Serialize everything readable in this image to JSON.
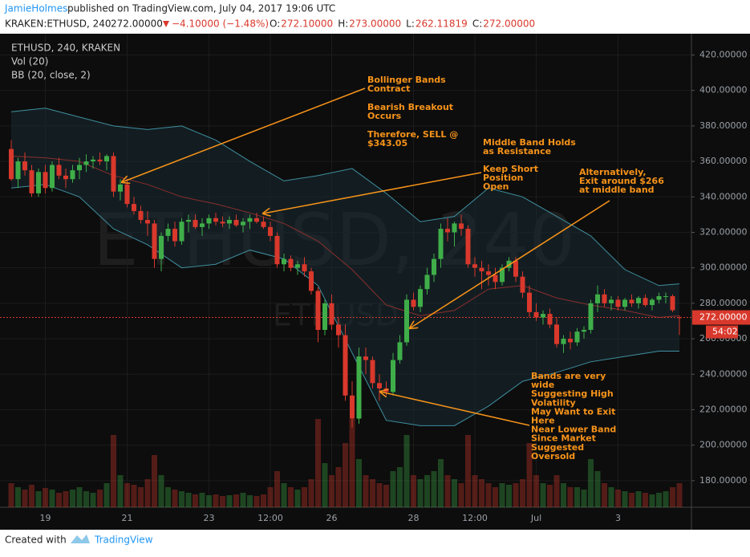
{
  "header": {
    "author": "JamieHolmes",
    "published": "published on TradingView.com, July 04, 2017 19:06 UTC",
    "symbol": "KRAKEN:ETHUSD, 240",
    "price": "272.00000",
    "change": "−4.10000 (−1.48%)",
    "ohlc": [
      {
        "k": "O:",
        "v": "272.10000"
      },
      {
        "k": "H:",
        "v": "273.00000"
      },
      {
        "k": "L:",
        "v": "262.11819"
      },
      {
        "k": "C:",
        "v": "272.00000"
      }
    ]
  },
  "chart_data": {
    "type": "candlestick",
    "legend": [
      "ETHUSD, 240, KRAKEN",
      "Vol (20)",
      "BB (20, close, 2)"
    ],
    "watermark": "ETHUSD, 240",
    "watermark_small": "ETHUSD",
    "ylim": [
      165,
      432
    ],
    "yticks": [
      {
        "value": 180,
        "label": "180.00000"
      },
      {
        "value": 200,
        "label": "200.00000"
      },
      {
        "value": 220,
        "label": "220.00000"
      },
      {
        "value": 240,
        "label": "240.00000"
      },
      {
        "value": 260,
        "label": "260.00000"
      },
      {
        "value": 280,
        "label": "280.00000"
      },
      {
        "value": 300,
        "label": "300.00000"
      },
      {
        "value": 320,
        "label": "320.00000"
      },
      {
        "value": 340,
        "label": "340.00000"
      },
      {
        "value": 360,
        "label": "360.00000"
      },
      {
        "value": 380,
        "label": "380.00000"
      },
      {
        "value": 400,
        "label": "400.00000"
      },
      {
        "value": 420,
        "label": "420.00000"
      }
    ],
    "xticks": [
      {
        "value": 5,
        "label": "19"
      },
      {
        "value": 17,
        "label": "21"
      },
      {
        "value": 29,
        "label": "23"
      },
      {
        "value": 38,
        "label": "12:00"
      },
      {
        "value": 47,
        "label": "26"
      },
      {
        "value": 59,
        "label": "28"
      },
      {
        "value": 68,
        "label": "12:00"
      },
      {
        "value": 77,
        "label": "Jul"
      },
      {
        "value": 89,
        "label": "3"
      }
    ],
    "last_price": {
      "value": 272,
      "label": "272.00000"
    },
    "countdown": "54:02",
    "up_color": "#3fae49",
    "down_color": "#d9382c",
    "ohlc": [
      [
        367,
        372,
        349,
        350
      ],
      [
        350,
        362,
        345,
        360
      ],
      [
        360,
        365,
        352,
        355
      ],
      [
        355,
        358,
        340,
        342
      ],
      [
        342,
        356,
        340,
        354
      ],
      [
        354,
        358,
        342,
        345
      ],
      [
        345,
        360,
        343,
        358
      ],
      [
        358,
        362,
        350,
        352
      ],
      [
        352,
        356,
        345,
        350
      ],
      [
        350,
        358,
        348,
        355
      ],
      [
        355,
        362,
        350,
        358
      ],
      [
        358,
        364,
        354,
        360
      ],
      [
        360,
        363,
        356,
        361
      ],
      [
        361,
        365,
        358,
        360
      ],
      [
        360,
        364,
        355,
        363
      ],
      [
        363,
        365,
        340,
        343
      ],
      [
        343,
        350,
        338,
        347
      ],
      [
        347,
        349,
        334,
        336
      ],
      [
        336,
        340,
        330,
        332
      ],
      [
        332,
        335,
        325,
        327
      ],
      [
        327,
        332,
        318,
        325
      ],
      [
        325,
        327,
        300,
        305
      ],
      [
        305,
        320,
        298,
        318
      ],
      [
        318,
        325,
        315,
        322
      ],
      [
        322,
        326,
        312,
        315
      ],
      [
        315,
        328,
        313,
        326
      ],
      [
        326,
        330,
        320,
        327
      ],
      [
        327,
        330,
        322,
        323
      ],
      [
        323,
        328,
        318,
        325
      ],
      [
        325,
        330,
        322,
        328
      ],
      [
        328,
        331,
        324,
        326
      ],
      [
        326,
        329,
        323,
        325
      ],
      [
        325,
        329,
        322,
        327
      ],
      [
        327,
        330,
        323,
        324
      ],
      [
        324,
        328,
        320,
        326
      ],
      [
        326,
        330,
        322,
        328
      ],
      [
        328,
        331,
        325,
        326
      ],
      [
        326,
        329,
        322,
        323
      ],
      [
        323,
        326,
        315,
        318
      ],
      [
        318,
        320,
        300,
        302
      ],
      [
        302,
        308,
        298,
        305
      ],
      [
        305,
        307,
        298,
        300
      ],
      [
        300,
        304,
        296,
        302
      ],
      [
        302,
        306,
        295,
        298
      ],
      [
        298,
        300,
        285,
        287
      ],
      [
        287,
        289,
        258,
        265
      ],
      [
        265,
        282,
        262,
        280
      ],
      [
        280,
        285,
        265,
        268
      ],
      [
        268,
        272,
        255,
        262
      ],
      [
        262,
        268,
        225,
        228
      ],
      [
        228,
        236,
        210,
        215
      ],
      [
        215,
        255,
        212,
        250
      ],
      [
        250,
        255,
        240,
        248
      ],
      [
        248,
        250,
        232,
        235
      ],
      [
        235,
        240,
        225,
        232
      ],
      [
        232,
        236,
        228,
        230
      ],
      [
        230,
        252,
        228,
        248
      ],
      [
        248,
        262,
        246,
        258
      ],
      [
        258,
        285,
        256,
        282
      ],
      [
        282,
        286,
        276,
        278
      ],
      [
        278,
        290,
        275,
        288
      ],
      [
        288,
        300,
        285,
        296
      ],
      [
        296,
        308,
        292,
        305
      ],
      [
        305,
        325,
        300,
        322
      ],
      [
        322,
        328,
        315,
        320
      ],
      [
        320,
        326,
        312,
        325
      ],
      [
        325,
        330,
        318,
        322
      ],
      [
        322,
        324,
        300,
        302
      ],
      [
        302,
        306,
        295,
        300
      ],
      [
        300,
        304,
        288,
        298
      ],
      [
        298,
        302,
        290,
        296
      ],
      [
        296,
        300,
        288,
        292
      ],
      [
        292,
        302,
        290,
        300
      ],
      [
        300,
        306,
        298,
        304
      ],
      [
        304,
        306,
        292,
        295
      ],
      [
        295,
        298,
        283,
        286
      ],
      [
        286,
        290,
        272,
        275
      ],
      [
        275,
        280,
        270,
        272
      ],
      [
        272,
        276,
        268,
        274
      ],
      [
        274,
        277,
        266,
        268
      ],
      [
        268,
        272,
        255,
        257
      ],
      [
        257,
        262,
        252,
        260
      ],
      [
        260,
        264,
        254,
        258
      ],
      [
        258,
        266,
        256,
        264
      ],
      [
        264,
        267,
        260,
        265
      ],
      [
        265,
        282,
        263,
        280
      ],
      [
        280,
        290,
        275,
        285
      ],
      [
        285,
        288,
        278,
        280
      ],
      [
        280,
        284,
        276,
        282
      ],
      [
        282,
        284,
        276,
        278
      ],
      [
        278,
        283,
        276,
        282
      ],
      [
        282,
        285,
        278,
        280
      ],
      [
        280,
        284,
        277,
        283
      ],
      [
        283,
        285,
        278,
        279
      ],
      [
        279,
        283,
        276,
        282
      ],
      [
        282,
        286,
        280,
        284
      ],
      [
        284,
        286,
        280,
        284
      ],
      [
        284,
        285,
        275,
        276.1
      ],
      [
        272.1,
        273,
        262.11819,
        272
      ]
    ],
    "volume": [
      30,
      25,
      22,
      28,
      20,
      24,
      22,
      18,
      20,
      22,
      25,
      20,
      18,
      22,
      30,
      90,
      40,
      30,
      28,
      25,
      35,
      65,
      40,
      25,
      22,
      20,
      18,
      16,
      18,
      15,
      16,
      14,
      15,
      16,
      18,
      15,
      14,
      16,
      25,
      45,
      30,
      25,
      22,
      25,
      35,
      110,
      55,
      40,
      50,
      80,
      110,
      60,
      40,
      35,
      30,
      28,
      45,
      50,
      90,
      40,
      35,
      40,
      45,
      60,
      40,
      35,
      30,
      90,
      40,
      35,
      30,
      25,
      30,
      28,
      30,
      35,
      80,
      40,
      30,
      28,
      40,
      30,
      25,
      25,
      22,
      60,
      45,
      30,
      25,
      22,
      20,
      18,
      20,
      18,
      16,
      18,
      20,
      25,
      30
    ],
    "bands": {
      "x": [
        0,
        5,
        10,
        15,
        20,
        25,
        30,
        35,
        40,
        45,
        50,
        55,
        60,
        65,
        70,
        75,
        80,
        85,
        90,
        95,
        98
      ],
      "upper": [
        388,
        390,
        385,
        380,
        378,
        380,
        372,
        360,
        349,
        352,
        356,
        342,
        326,
        329,
        345,
        340,
        329,
        318,
        299,
        290,
        291
      ],
      "middle": [
        363,
        362,
        360,
        352,
        347,
        340,
        336,
        331,
        325,
        315,
        299,
        279,
        273,
        276,
        288,
        290,
        283,
        279,
        276,
        272,
        273
      ],
      "lower": [
        345,
        347,
        340,
        322,
        313,
        300,
        302,
        310,
        305,
        290,
        252,
        214,
        211,
        211,
        222,
        236,
        241,
        247,
        250,
        253,
        253
      ]
    },
    "annotations": [
      {
        "lines": [
          "Bollinger Bands",
          "Contract"
        ]
      },
      {
        "lines": [
          "Bearish Breakout",
          "Occurs"
        ]
      },
      {
        "lines": [
          "Therefore, SELL @",
          "$343.05"
        ]
      },
      {
        "lines": [
          "Middle Band Holds",
          "as Resistance"
        ]
      },
      {
        "lines": [
          "Keep Short",
          "Position",
          "Open"
        ]
      },
      {
        "lines": [
          "Alternatively,",
          "Exit around $266",
          "at middle band"
        ]
      },
      {
        "lines": [
          "Bands are very",
          "wide",
          "Suggesting High",
          "Volatility",
          "May Want to Exit",
          "Here",
          "Near Lower Band",
          "Since Market",
          "Suggested",
          "Oversold"
        ]
      }
    ]
  },
  "footer": {
    "created": "Created with",
    "brand": "TradingView"
  }
}
